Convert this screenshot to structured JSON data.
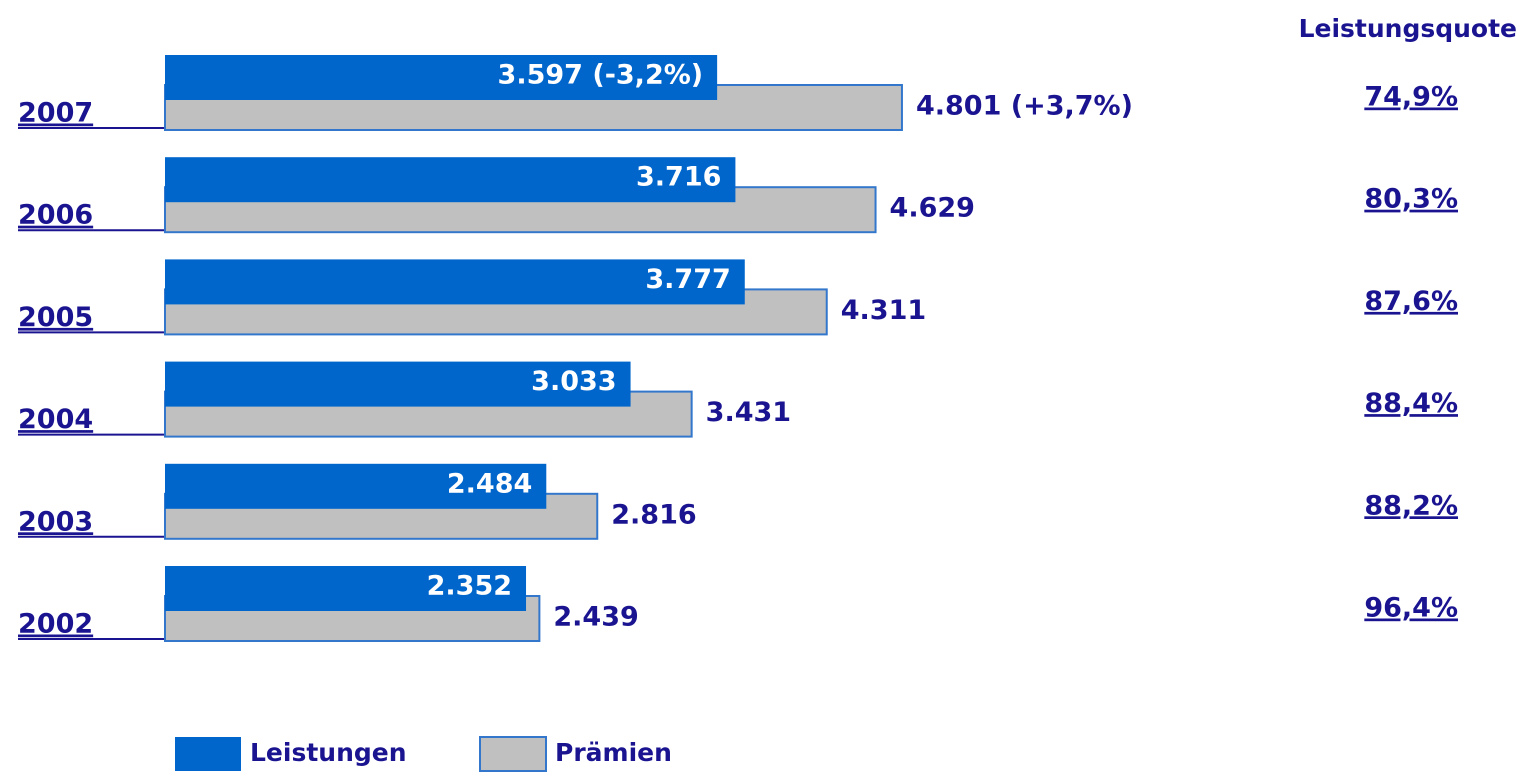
{
  "chart_data": {
    "type": "bar",
    "orientation": "horizontal",
    "categories": [
      "2007",
      "2006",
      "2005",
      "2004",
      "2003",
      "2002"
    ],
    "series": [
      {
        "name": "Leistungen",
        "color": "#0066cc",
        "values": [
          3597,
          3716,
          3777,
          3033,
          2484,
          2352
        ],
        "value_labels": [
          "3.597 (-3,2%)",
          "3.716",
          "3.777",
          "3.033",
          "2.484",
          "2.352"
        ]
      },
      {
        "name": "Prämien",
        "color": "#c0c0c0",
        "values": [
          4801,
          4629,
          4311,
          3431,
          2816,
          2439
        ],
        "value_labels": [
          "4.801 (+3,7%)",
          "4.629",
          "4.311",
          "3.431",
          "2.816",
          "2.439"
        ]
      }
    ],
    "leistungsquote": {
      "title": "Leistungsquote",
      "values": [
        74.9,
        80.3,
        87.6,
        88.4,
        88.2,
        96.4
      ],
      "value_labels": [
        "74,9%",
        "80,3%",
        "87,6%",
        "88,4%",
        "88,2%",
        "96,4%"
      ]
    }
  }
}
